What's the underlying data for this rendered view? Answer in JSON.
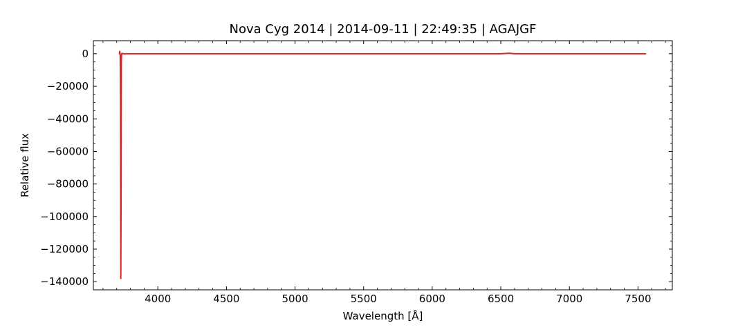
{
  "chart_data": {
    "type": "line",
    "title": "Nova Cyg 2014 | 2014-09-11 | 22:49:35 | AGAJGF",
    "xlabel": "Wavelength [Å]",
    "ylabel": "Relative flux",
    "xlim": [
      3530,
      7750
    ],
    "ylim": [
      -145000,
      8000
    ],
    "xticks": [
      4000,
      4500,
      5000,
      5500,
      6000,
      6500,
      7000,
      7500
    ],
    "xtick_labels": [
      "4000",
      "4500",
      "5000",
      "5500",
      "6000",
      "6500",
      "7000",
      "7500"
    ],
    "yticks": [
      0,
      -20000,
      -40000,
      -60000,
      -80000,
      -100000,
      -120000,
      -140000
    ],
    "ytick_labels": [
      "0",
      "−20000",
      "−40000",
      "−60000",
      "−80000",
      "−100000",
      "−120000",
      "−140000"
    ],
    "x_minor_step": 100,
    "y_minor_step": 5000,
    "tick_direction": "in",
    "grid": false,
    "series": [
      {
        "color": "#d62728",
        "x": [
          3720,
          3722,
          3724,
          3726,
          3728,
          3730,
          3732,
          3734,
          3736,
          3740,
          3750,
          3800,
          4000,
          4500,
          5000,
          5500,
          6000,
          6400,
          6500,
          6563,
          6600,
          7000,
          7500,
          7555
        ],
        "y": [
          0,
          1500,
          500,
          -2000,
          -30000,
          -138000,
          -90000,
          -5000,
          0,
          200,
          0,
          0,
          0,
          0,
          0,
          0,
          0,
          0,
          0,
          300,
          0,
          0,
          0,
          0
        ]
      }
    ]
  }
}
